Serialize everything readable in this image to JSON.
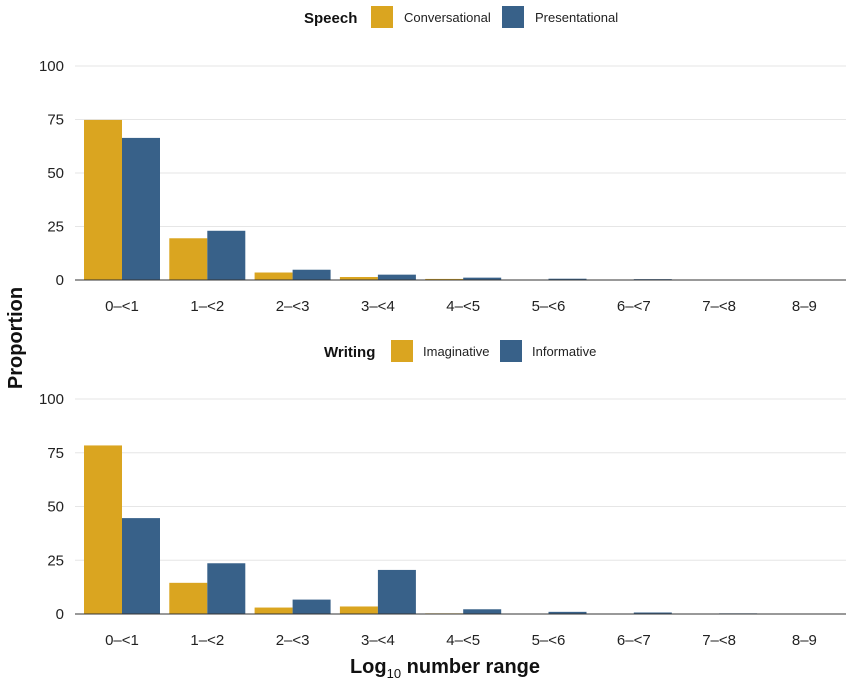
{
  "colors": {
    "series_a": "#DAA520",
    "series_b": "#386189"
  },
  "shared_ylabel": "Proportion",
  "shared_xlabel": {
    "main": "Log",
    "sub": "10",
    "rest": " number range"
  },
  "chart_data": [
    {
      "type": "bar",
      "legend_title": "Speech",
      "legend_position": "top",
      "categories": [
        "0–<1",
        "1–<2",
        "2–<3",
        "3–<4",
        "4–<5",
        "5–<6",
        "6–<7",
        "7–<8",
        "8–9"
      ],
      "series": [
        {
          "name": "Conversational",
          "values": [
            74.8,
            19.5,
            3.5,
            1.4,
            0.5,
            0.2,
            0.1,
            0.05,
            0.0
          ]
        },
        {
          "name": "Presentational",
          "values": [
            66.4,
            23.0,
            4.8,
            2.5,
            1.1,
            0.6,
            0.4,
            0.1,
            0.05
          ]
        }
      ],
      "yticks": [
        0,
        25,
        50,
        75,
        100
      ],
      "ylim": [
        0,
        100
      ],
      "grid": "horizontal"
    },
    {
      "type": "bar",
      "legend_title": "Writing",
      "legend_position": "top",
      "categories": [
        "0–<1",
        "1–<2",
        "2–<3",
        "3–<4",
        "4–<5",
        "5–<6",
        "6–<7",
        "7–<8",
        "8–9"
      ],
      "series": [
        {
          "name": "Imaginative",
          "values": [
            78.4,
            14.5,
            3.0,
            3.5,
            0.3,
            0.2,
            0.1,
            0.05,
            0.0
          ]
        },
        {
          "name": "Informative",
          "values": [
            44.6,
            23.6,
            6.7,
            20.5,
            2.2,
            1.0,
            0.7,
            0.3,
            0.2
          ]
        }
      ],
      "yticks": [
        0,
        25,
        50,
        75,
        100
      ],
      "ylim": [
        0,
        100
      ],
      "grid": "horizontal"
    }
  ]
}
